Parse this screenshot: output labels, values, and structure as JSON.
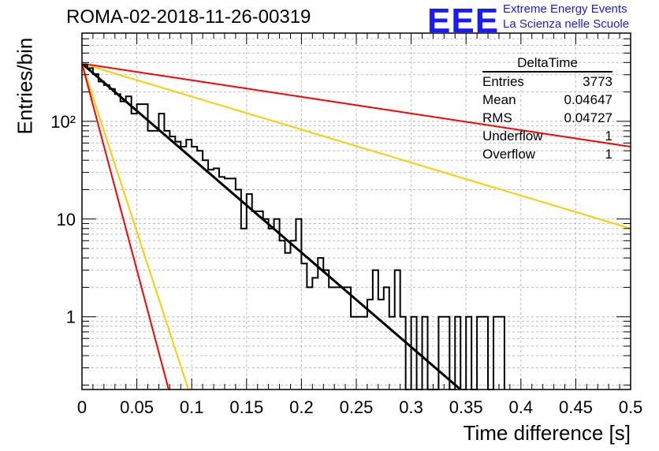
{
  "header": {
    "title": "ROMA-02-2018-11-26-00319",
    "logo_mark": "EEE",
    "logo_line1": "Extreme Energy Events",
    "logo_line2": "La Scienza nelle Scuole"
  },
  "stats_box": {
    "name": "DeltaTime",
    "rows": [
      {
        "label": "Entries",
        "value": "3773"
      },
      {
        "label": "Mean",
        "value": "0.04647"
      },
      {
        "label": "RMS",
        "value": "0.04727"
      },
      {
        "label": "Underflow",
        "value": "1"
      },
      {
        "label": "Overflow",
        "value": "1"
      }
    ]
  },
  "chart_data": {
    "type": "line",
    "title": "ROMA-02-2018-11-26-00319",
    "xlabel": "Time difference [s]",
    "ylabel": "Entries/bin",
    "xlim": [
      0,
      0.5
    ],
    "ylim": [
      0.18,
      800
    ],
    "y_scale": "log",
    "grid": true,
    "x_ticks": [
      "0",
      "0.05",
      "0.1",
      "0.15",
      "0.2",
      "0.25",
      "0.3",
      "0.35",
      "0.4",
      "0.45",
      "0.5"
    ],
    "y_ticks": [
      "1",
      "10",
      "10²"
    ],
    "histogram": {
      "bin_width": 0.005,
      "bin_start": 0,
      "counts": [
        380,
        350,
        305,
        255,
        235,
        215,
        190,
        160,
        180,
        120,
        150,
        150,
        80,
        80,
        120,
        80,
        70,
        62,
        55,
        65,
        55,
        50,
        40,
        32,
        33,
        27,
        26,
        26,
        20,
        8,
        18,
        12,
        12,
        10,
        8,
        10,
        6,
        4.5,
        6,
        10,
        3.5,
        2,
        2.5,
        4,
        3,
        2,
        2,
        2,
        2,
        1,
        1,
        1,
        1.5,
        3,
        1.5,
        2,
        1,
        3,
        1,
        0.18,
        1,
        0.18,
        1,
        0.18,
        0.18,
        1,
        1,
        0.18,
        1,
        0.18,
        1,
        0.18,
        1,
        1,
        0.18,
        1,
        1
      ]
    },
    "series": [
      {
        "color": "#000000",
        "x": [
          0,
          0.345
        ],
        "y": [
          390,
          0.18
        ]
      },
      {
        "color": "#ff0000",
        "x": [
          0,
          0.5
        ],
        "y": [
          390,
          55
        ]
      },
      {
        "color": "#ffcc00",
        "x": [
          0,
          0.5
        ],
        "y": [
          390,
          8
        ]
      },
      {
        "color": "#ffcc00",
        "x": [
          0,
          0.097
        ],
        "y": [
          390,
          0.18
        ]
      },
      {
        "color": "#ff0000",
        "x": [
          0,
          0.079
        ],
        "y": [
          390,
          0.18
        ]
      }
    ]
  }
}
